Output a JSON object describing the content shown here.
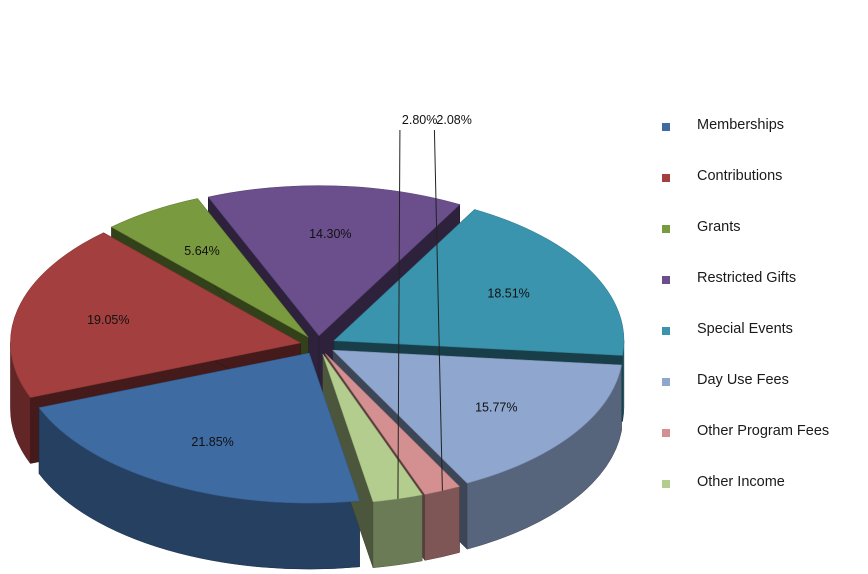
{
  "chart_data": {
    "type": "pie",
    "title": "",
    "categories": [
      "Memberships",
      "Contributions",
      "Grants",
      "Restricted Gifts",
      "Special Events",
      "Day Use Fees",
      "Other Program Fees",
      "Other Income"
    ],
    "values": [
      21.85,
      19.05,
      5.64,
      14.3,
      18.51,
      15.77,
      2.08,
      2.8
    ],
    "labels": [
      "21.85%",
      "19.05%",
      "5.64%",
      "14.30%",
      "18.51%",
      "15.77%",
      "2.08%",
      "2.80%"
    ],
    "colors": [
      "#3F6BA3",
      "#A33F3F",
      "#7A9A3F",
      "#6A4F8C",
      "#3A94AD",
      "#8FA6CF",
      "#D49090",
      "#B3CD8E"
    ],
    "legend_position": "right",
    "style": "3d-exploded"
  }
}
